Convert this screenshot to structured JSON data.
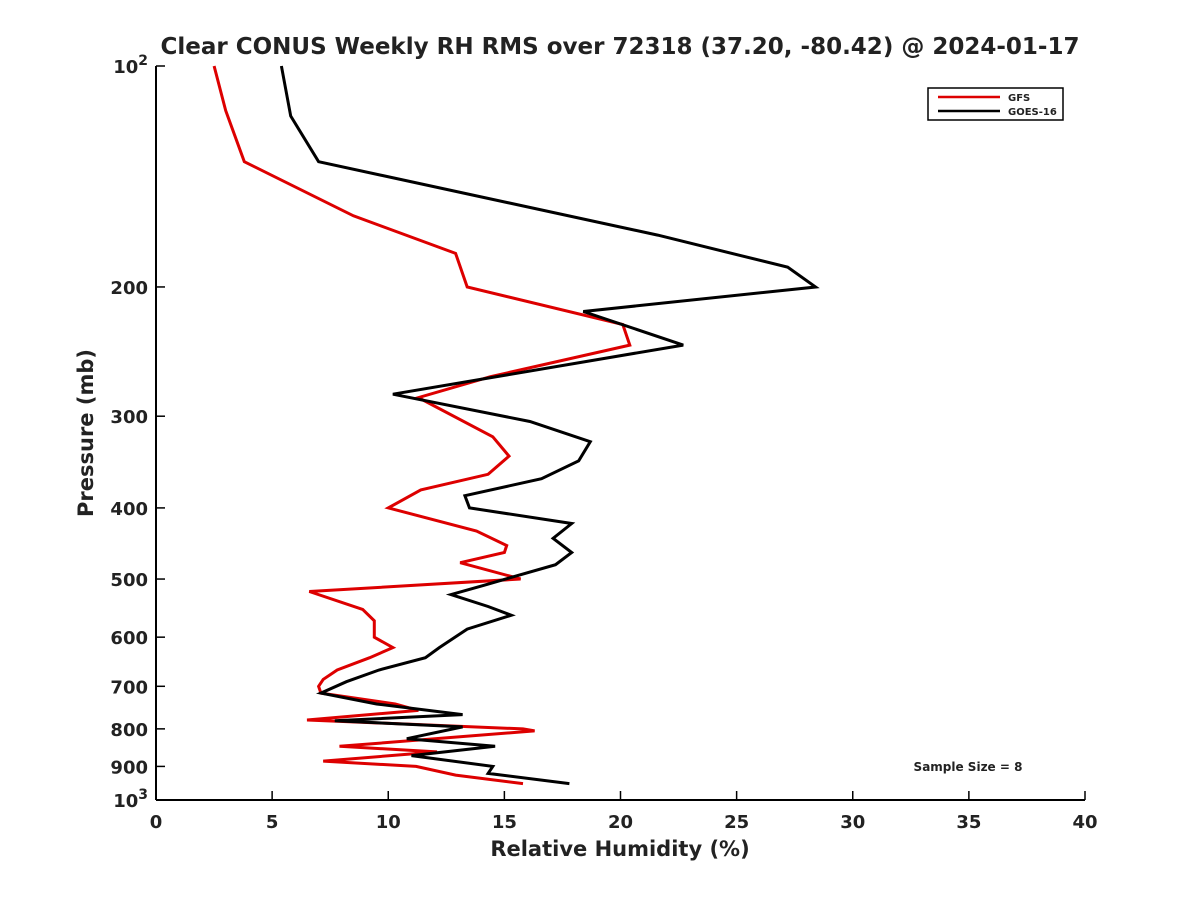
{
  "chart_data": {
    "type": "line",
    "title": "Clear CONUS Weekly RH RMS over 72318 (37.20, -80.42) @ 2024-01-17",
    "xlabel": "Relative Humidity (%)",
    "ylabel": "Pressure (mb)",
    "xlim": [
      0,
      40
    ],
    "ylim": [
      100,
      1000
    ],
    "y_scale": "log",
    "y_reversed": true,
    "x_ticks": [
      0,
      5,
      10,
      15,
      20,
      25,
      30,
      35,
      40
    ],
    "y_ticks": [
      {
        "value": 100,
        "label": "10",
        "sup": "2"
      },
      {
        "value": 200,
        "label": "200",
        "sup": ""
      },
      {
        "value": 300,
        "label": "300",
        "sup": ""
      },
      {
        "value": 400,
        "label": "400",
        "sup": ""
      },
      {
        "value": 500,
        "label": "500",
        "sup": ""
      },
      {
        "value": 600,
        "label": "600",
        "sup": ""
      },
      {
        "value": 700,
        "label": "700",
        "sup": ""
      },
      {
        "value": 800,
        "label": "800",
        "sup": ""
      },
      {
        "value": 900,
        "label": "900",
        "sup": ""
      },
      {
        "value": 1000,
        "label": "10",
        "sup": "3"
      }
    ],
    "grid": false,
    "legend_position": "top-right",
    "annotation": "Sample Size = 8",
    "series": [
      {
        "name": "GFS",
        "color": "#dd0000",
        "points": [
          [
            2.5,
            100
          ],
          [
            3.0,
            115
          ],
          [
            3.8,
            135
          ],
          [
            8.5,
            160
          ],
          [
            12.9,
            180
          ],
          [
            13.4,
            200
          ],
          [
            20.1,
            225
          ],
          [
            20.4,
            240
          ],
          [
            14.4,
            265
          ],
          [
            11.3,
            283
          ],
          [
            14.5,
            320
          ],
          [
            15.2,
            340
          ],
          [
            14.3,
            360
          ],
          [
            11.4,
            378
          ],
          [
            10.0,
            400
          ],
          [
            13.8,
            430
          ],
          [
            15.1,
            450
          ],
          [
            15.0,
            460
          ],
          [
            13.1,
            475
          ],
          [
            15.7,
            500
          ],
          [
            6.6,
            520
          ],
          [
            8.9,
            550
          ],
          [
            9.4,
            570
          ],
          [
            9.4,
            590
          ],
          [
            9.4,
            600
          ],
          [
            10.2,
            620
          ],
          [
            9.2,
            640
          ],
          [
            7.8,
            665
          ],
          [
            7.2,
            685
          ],
          [
            7.0,
            700
          ],
          [
            7.1,
            715
          ],
          [
            10.3,
            740
          ],
          [
            11.3,
            755
          ],
          [
            6.5,
            778
          ],
          [
            15.8,
            800
          ],
          [
            16.3,
            805
          ],
          [
            7.9,
            845
          ],
          [
            12.1,
            860
          ],
          [
            7.2,
            885
          ],
          [
            11.2,
            900
          ],
          [
            12.9,
            925
          ],
          [
            15.8,
            950
          ]
        ]
      },
      {
        "name": "GOES-16",
        "color": "#000000",
        "points": [
          [
            5.4,
            100
          ],
          [
            5.8,
            117
          ],
          [
            7.0,
            135
          ],
          [
            21.6,
            170
          ],
          [
            27.2,
            188
          ],
          [
            28.4,
            200
          ],
          [
            18.4,
            216
          ],
          [
            22.7,
            240
          ],
          [
            10.2,
            280
          ],
          [
            16.1,
            305
          ],
          [
            18.7,
            325
          ],
          [
            18.2,
            345
          ],
          [
            16.6,
            365
          ],
          [
            13.3,
            385
          ],
          [
            13.5,
            400
          ],
          [
            17.9,
            420
          ],
          [
            17.1,
            440
          ],
          [
            17.9,
            460
          ],
          [
            17.2,
            478
          ],
          [
            14.1,
            510
          ],
          [
            12.7,
            525
          ],
          [
            14.3,
            545
          ],
          [
            15.3,
            560
          ],
          [
            13.4,
            585
          ],
          [
            12.2,
            620
          ],
          [
            11.6,
            640
          ],
          [
            9.6,
            665
          ],
          [
            8.2,
            690
          ],
          [
            7.1,
            715
          ],
          [
            9.5,
            740
          ],
          [
            13.2,
            765
          ],
          [
            7.7,
            780
          ],
          [
            13.2,
            795
          ],
          [
            10.8,
            825
          ],
          [
            14.6,
            845
          ],
          [
            11.0,
            870
          ],
          [
            14.5,
            900
          ],
          [
            14.3,
            920
          ],
          [
            17.8,
            950
          ]
        ]
      }
    ]
  }
}
